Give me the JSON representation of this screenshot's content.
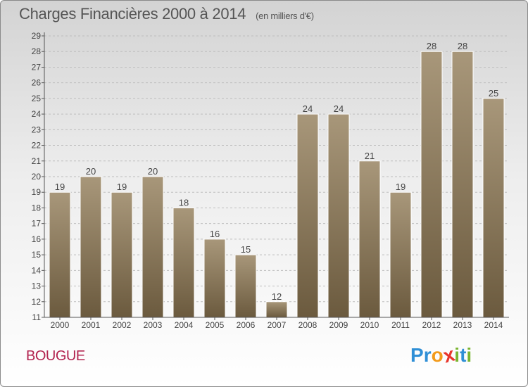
{
  "header": {
    "title": "Charges Financières 2000 à 2014",
    "unit": "(en milliers d'€)"
  },
  "commune": "BOUGUE",
  "logo": {
    "text": "Proxiti",
    "letters": [
      {
        "ch": "P",
        "color": "#2f8fd6"
      },
      {
        "ch": "r",
        "color": "#2f8fd6"
      },
      {
        "ch": "o",
        "color": "#f29a1a"
      },
      {
        "ch": "x",
        "color": "#e8352c"
      },
      {
        "ch": "i",
        "color": "#7ab531"
      },
      {
        "ch": "t",
        "color": "#2f8fd6"
      },
      {
        "ch": "i",
        "color": "#7ab531"
      }
    ]
  },
  "colors": {
    "bar_top": "#a8977a",
    "bar_bottom": "#6b5a3e",
    "grid": "#bdbdbd",
    "axis": "#555555",
    "title": "#555555",
    "commune": "#b2234f"
  },
  "chart_data": {
    "type": "bar",
    "title": "Charges Financières 2000 à 2014",
    "subtitle": "(en milliers d'€)",
    "xlabel": "",
    "ylabel": "",
    "categories": [
      "2000",
      "2001",
      "2002",
      "2003",
      "2004",
      "2005",
      "2006",
      "2007",
      "2008",
      "2009",
      "2010",
      "2011",
      "2012",
      "2013",
      "2014"
    ],
    "values": [
      19,
      20,
      19,
      20,
      18,
      16,
      15,
      12,
      24,
      24,
      21,
      19,
      28,
      28,
      25
    ],
    "ylim": [
      11,
      29
    ],
    "yticks": [
      11,
      12,
      13,
      14,
      15,
      16,
      17,
      18,
      19,
      20,
      21,
      22,
      23,
      24,
      25,
      26,
      27,
      28,
      29
    ],
    "grid": "horizontal dashed",
    "data_labels": true
  }
}
